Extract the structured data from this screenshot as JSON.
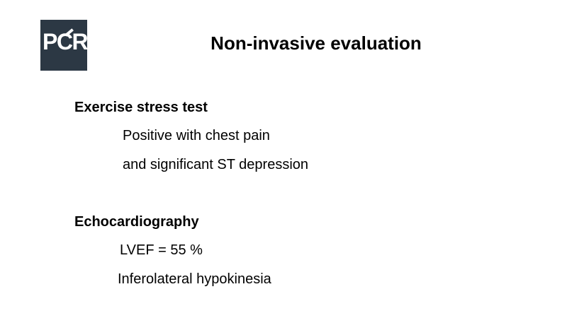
{
  "slide": {
    "logo": {
      "text": "PCR"
    },
    "title": "Non-invasive evaluation",
    "sections": [
      {
        "heading": "Exercise stress test",
        "lines": [
          "Positive with chest pain",
          "and significant ST depression"
        ]
      },
      {
        "heading": "Echocardiography",
        "lines": [
          "LVEF = 55 %",
          "Inferolateral hypokinesia"
        ]
      }
    ],
    "colors": {
      "background": "#ffffff",
      "text": "#000000",
      "logo_background": "#2c3844",
      "logo_text": "#ffffff"
    }
  }
}
